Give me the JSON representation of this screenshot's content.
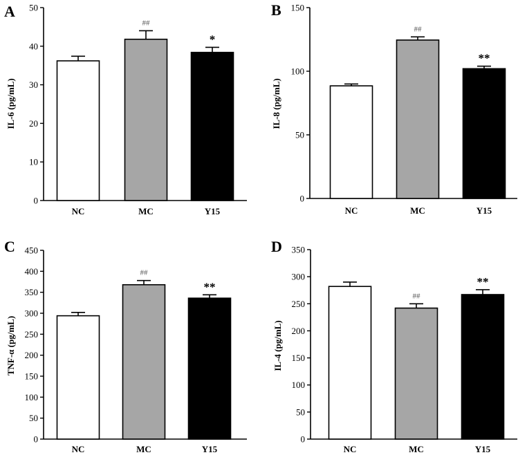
{
  "colors": {
    "NC": "#ffffff",
    "MC": "#a6a6a6",
    "Y15": "#000000",
    "axis": "#000000"
  },
  "chart_data": [
    {
      "panel": "A",
      "type": "bar",
      "categories": [
        "NC",
        "MC",
        "Y15"
      ],
      "values": [
        36.2,
        41.8,
        38.4
      ],
      "errors": [
        1.2,
        2.2,
        1.3
      ],
      "annotations": [
        "",
        "##",
        "*"
      ],
      "ylabel": "IL-6 (pg/mL)",
      "ylim": [
        0,
        50
      ],
      "yticks": [
        "0",
        "10",
        "20",
        "30",
        "40",
        "50"
      ]
    },
    {
      "panel": "B",
      "type": "bar",
      "categories": [
        "NC",
        "MC",
        "Y15"
      ],
      "values": [
        88.5,
        124.5,
        102
      ],
      "errors": [
        1.5,
        2.5,
        2
      ],
      "annotations": [
        "",
        "##",
        "**"
      ],
      "ylabel": "IL-8 (pg/mL)",
      "ylim": [
        0,
        150
      ],
      "yticks": [
        "0",
        "50",
        "100",
        "150"
      ]
    },
    {
      "panel": "C",
      "type": "bar",
      "categories": [
        "NC",
        "MC",
        "Y15"
      ],
      "values": [
        294,
        368,
        336
      ],
      "errors": [
        8,
        10,
        8
      ],
      "annotations": [
        "",
        "##",
        "**"
      ],
      "ylabel": "TNF-α (pg/mL)",
      "ylim": [
        0,
        450
      ],
      "yticks": [
        "0",
        "50",
        "100",
        "150",
        "200",
        "250",
        "300",
        "350",
        "400",
        "450"
      ]
    },
    {
      "panel": "D",
      "type": "bar",
      "categories": [
        "NC",
        "MC",
        "Y15"
      ],
      "values": [
        282,
        242,
        267
      ],
      "errors": [
        8,
        8,
        9
      ],
      "annotations": [
        "",
        "##",
        "**"
      ],
      "ylabel": "IL-4 (pg/mL)",
      "ylim": [
        0,
        350
      ],
      "yticks": [
        "0",
        "50",
        "100",
        "150",
        "200",
        "250",
        "300",
        "350"
      ]
    }
  ]
}
